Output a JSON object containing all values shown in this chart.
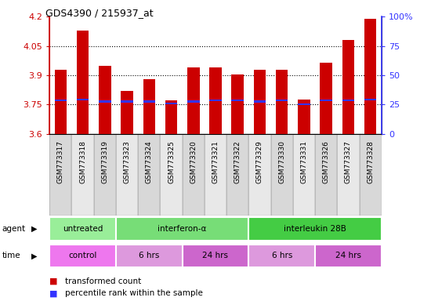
{
  "title": "GDS4390 / 215937_at",
  "samples": [
    "GSM773317",
    "GSM773318",
    "GSM773319",
    "GSM773323",
    "GSM773324",
    "GSM773325",
    "GSM773320",
    "GSM773321",
    "GSM773322",
    "GSM773329",
    "GSM773330",
    "GSM773331",
    "GSM773326",
    "GSM773327",
    "GSM773328"
  ],
  "bar_values": [
    3.93,
    4.13,
    3.95,
    3.82,
    3.88,
    3.77,
    3.94,
    3.94,
    3.905,
    3.93,
    3.93,
    3.775,
    3.965,
    4.08,
    4.19
  ],
  "percentile_values": [
    3.772,
    3.775,
    3.766,
    3.766,
    3.766,
    3.756,
    3.766,
    3.771,
    3.771,
    3.766,
    3.771,
    3.751,
    3.771,
    3.771,
    3.776
  ],
  "ylim": [
    3.6,
    4.2
  ],
  "yticks": [
    3.6,
    3.75,
    3.9,
    4.05,
    4.2
  ],
  "ytick_labels": [
    "3.6",
    "3.75",
    "3.9",
    "4.05",
    "4.2"
  ],
  "right_yticks": [
    0,
    25,
    50,
    75,
    100
  ],
  "right_ytick_labels": [
    "0",
    "25",
    "50",
    "75",
    "100%"
  ],
  "bar_color": "#cc0000",
  "dot_color": "#3333ff",
  "agent_groups": [
    {
      "label": "untreated",
      "start": 0,
      "end": 3,
      "color": "#99ee99"
    },
    {
      "label": "interferon-α",
      "start": 3,
      "end": 9,
      "color": "#77dd77"
    },
    {
      "label": "interleukin 28B",
      "start": 9,
      "end": 15,
      "color": "#44cc44"
    }
  ],
  "time_groups": [
    {
      "label": "control",
      "start": 0,
      "end": 3,
      "color": "#ee77ee"
    },
    {
      "label": "6 hrs",
      "start": 3,
      "end": 6,
      "color": "#dd99dd"
    },
    {
      "label": "24 hrs",
      "start": 6,
      "end": 9,
      "color": "#cc66cc"
    },
    {
      "label": "6 hrs",
      "start": 9,
      "end": 12,
      "color": "#dd99dd"
    },
    {
      "label": "24 hrs",
      "start": 12,
      "end": 15,
      "color": "#cc66cc"
    }
  ],
  "legend_items": [
    {
      "color": "#cc0000",
      "label": "transformed count"
    },
    {
      "color": "#3333ff",
      "label": "percentile rank within the sample"
    }
  ],
  "background_color": "#ffffff",
  "label_area_bg_even": "#d8d8d8",
  "label_area_bg_odd": "#e8e8e8"
}
